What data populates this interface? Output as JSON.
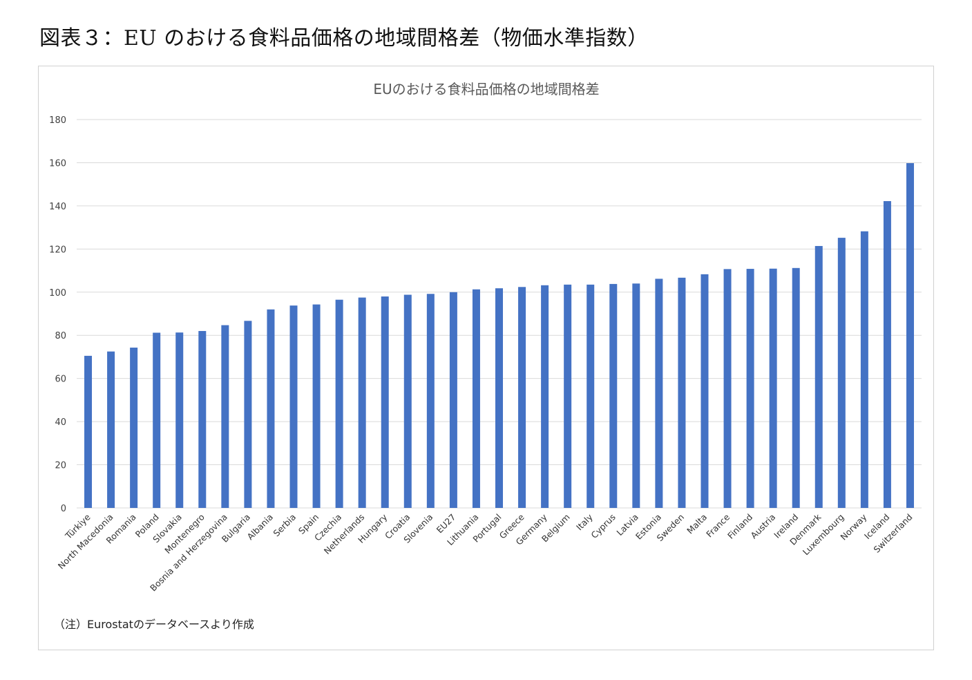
{
  "figure_title": "図表３：EU のおける食料品価格の地域間格差（物価水準指数）",
  "note": "（注）Eurostatのデータベースより作成",
  "colors": {
    "bar": "#4472C4",
    "grid": "#d9d9d9"
  },
  "chart_data": {
    "type": "bar",
    "title": "EUのおける食料品価格の地域間格差",
    "xlabel": "",
    "ylabel": "",
    "ylim": [
      0,
      180
    ],
    "yticks": [
      0,
      20,
      40,
      60,
      80,
      100,
      120,
      140,
      160,
      180
    ],
    "grid": true,
    "legend": "none",
    "categories": [
      "Türkiye",
      "North Macedonia",
      "Romania",
      "Poland",
      "Slovakia",
      "Montenegro",
      "Bosnia and Herzegovina",
      "Bulgaria",
      "Albania",
      "Serbia",
      "Spain",
      "Czechia",
      "Netherlands",
      "Hungary",
      "Croatia",
      "Slovenia",
      "EU27",
      "Lithuania",
      "Portugal",
      "Greece",
      "Germany",
      "Belgium",
      "Italy",
      "Cyprus",
      "Latvia",
      "Estonia",
      "Sweden",
      "Malta",
      "France",
      "Finland",
      "Austria",
      "Ireland",
      "Denmark",
      "Luxembourg",
      "Norway",
      "Iceland",
      "Switzerland"
    ],
    "values": [
      70.5,
      72.5,
      74.3,
      81.2,
      81.3,
      82.0,
      84.7,
      86.7,
      92.0,
      93.8,
      94.3,
      96.5,
      97.5,
      98.0,
      98.8,
      99.2,
      100.0,
      101.3,
      101.8,
      102.4,
      103.2,
      103.5,
      103.5,
      103.8,
      104.0,
      106.2,
      106.7,
      108.3,
      110.7,
      110.8,
      110.9,
      111.2,
      121.4,
      125.2,
      128.2,
      142.2,
      159.8
    ]
  }
}
